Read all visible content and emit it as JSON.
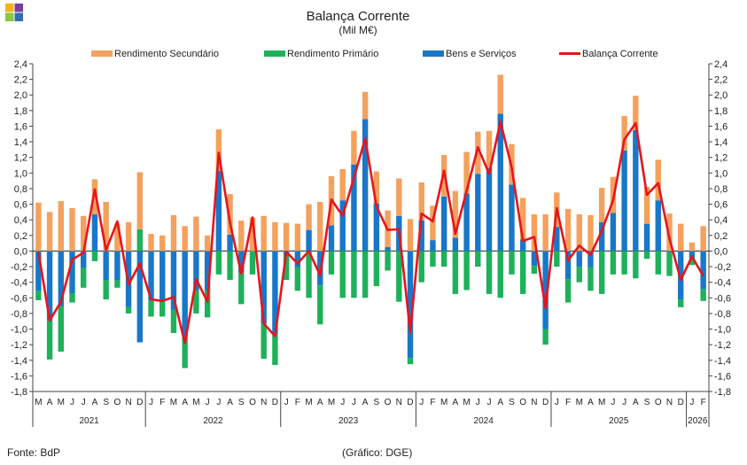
{
  "title": "Balança Corrente",
  "subtitle": "(Mil M€)",
  "footer": {
    "source": "Fonte: BdP",
    "credit": "(Gráfico: DGE)"
  },
  "colors": {
    "rendimento_secundario": "#f4a15d",
    "rendimento_primario": "#1db15a",
    "bens_servicos": "#1877c9",
    "balanca_corrente": "#e8141b",
    "logo": [
      "#f2b21b",
      "#7a3f98",
      "#8cc63f",
      "#2f6db5"
    ]
  },
  "chart_data": {
    "type": "bar",
    "stacked": true,
    "ylim": [
      -1.8,
      2.4
    ],
    "yticks": [
      -1.8,
      -1.6,
      -1.4,
      -1.2,
      -1.0,
      -0.8,
      -0.6,
      -0.4,
      -0.2,
      0.0,
      0.2,
      0.4,
      0.6,
      0.8,
      1.0,
      1.2,
      1.4,
      1.6,
      1.8,
      2.0,
      2.2,
      2.4
    ],
    "ytick_labels": [
      "-1,8",
      "-1,6",
      "-1,4",
      "-1,2",
      "-1,0",
      "-0,8",
      "-0,6",
      "-0,4",
      "-0,2",
      "0,0",
      "0,2",
      "0,4",
      "0,6",
      "0,8",
      "1,0",
      "1,2",
      "1,4",
      "1,6",
      "1,8",
      "2,0",
      "2,2",
      "2,4"
    ],
    "legend_position": "top",
    "years": [
      {
        "label": "2021",
        "count": 10
      },
      {
        "label": "2022",
        "count": 12
      },
      {
        "label": "2023",
        "count": 12
      },
      {
        "label": "2024",
        "count": 12
      },
      {
        "label": "2025",
        "count": 12
      },
      {
        "label": "2026",
        "count": 2
      }
    ],
    "categories": [
      "M",
      "A",
      "M",
      "J",
      "J",
      "A",
      "S",
      "O",
      "N",
      "D",
      "J",
      "F",
      "M",
      "A",
      "M",
      "J",
      "J",
      "A",
      "S",
      "O",
      "N",
      "D",
      "J",
      "F",
      "M",
      "A",
      "M",
      "J",
      "J",
      "A",
      "S",
      "O",
      "N",
      "D",
      "J",
      "F",
      "M",
      "A",
      "M",
      "J",
      "J",
      "A",
      "S",
      "O",
      "N",
      "D",
      "J",
      "F",
      "M",
      "A",
      "M",
      "J",
      "J",
      "A",
      "S",
      "O",
      "N",
      "D",
      "J",
      "F"
    ],
    "series": [
      {
        "name": "Rendimento Secundário",
        "kind": "bar",
        "values": [
          0.62,
          0.5,
          0.64,
          0.55,
          0.45,
          0.45,
          0.63,
          0.35,
          0.37,
          0.73,
          0.22,
          0.2,
          0.46,
          0.32,
          0.44,
          0.2,
          0.53,
          0.52,
          0.39,
          0.43,
          0.45,
          0.37,
          0.36,
          0.35,
          0.33,
          0.63,
          0.63,
          0.4,
          0.43,
          0.35,
          0.41,
          0.47,
          0.48,
          0.41,
          0.49,
          0.44,
          0.53,
          0.6,
          0.53,
          0.54,
          0.48,
          0.5,
          0.52,
          0.53,
          0.47,
          0.47,
          0.44,
          0.54,
          0.47,
          0.46,
          0.44,
          0.46,
          0.44,
          0.44,
          0.47,
          0.52,
          0.48,
          0.35,
          0.11,
          0.32
        ]
      },
      {
        "name": "Rendimento Primário",
        "kind": "bar",
        "values": [
          -0.12,
          -0.5,
          -0.58,
          -0.12,
          -0.25,
          -0.13,
          -0.25,
          -0.1,
          -0.08,
          0.28,
          -0.2,
          -0.2,
          -0.3,
          -0.4,
          -0.3,
          -0.35,
          -0.3,
          -0.37,
          -0.4,
          -0.3,
          -0.45,
          -0.4,
          -0.3,
          -0.3,
          -0.6,
          -0.5,
          -0.3,
          -0.6,
          -0.6,
          -0.6,
          -0.45,
          -0.25,
          -0.65,
          -0.08,
          -0.4,
          -0.2,
          -0.2,
          -0.55,
          -0.5,
          -0.2,
          -0.55,
          -0.6,
          -0.3,
          -0.55,
          -0.1,
          -0.2,
          -0.2,
          -0.3,
          -0.2,
          -0.3,
          -0.55,
          -0.3,
          -0.3,
          -0.35,
          -0.1,
          -0.3,
          -0.3,
          -0.1,
          -0.1,
          -0.15
        ]
      },
      {
        "name": "Bens e Serviços",
        "kind": "bar",
        "values": [
          -0.51,
          -0.89,
          -0.71,
          -0.54,
          -0.22,
          0.47,
          -0.37,
          -0.37,
          -0.72,
          -1.17,
          -0.64,
          -0.64,
          -0.75,
          -1.1,
          -0.5,
          -0.5,
          1.03,
          0.21,
          -0.28,
          0.0,
          -0.93,
          -1.06,
          -0.07,
          -0.21,
          0.27,
          -0.44,
          0.33,
          0.65,
          1.11,
          1.69,
          0.61,
          0.05,
          0.45,
          -1.37,
          0.39,
          0.14,
          0.7,
          0.17,
          0.74,
          0.99,
          1.06,
          1.76,
          0.85,
          0.15,
          -0.19,
          -1.0,
          0.31,
          -0.36,
          -0.2,
          -0.21,
          0.37,
          0.49,
          1.29,
          1.55,
          0.35,
          0.65,
          -0.02,
          -0.62,
          -0.08,
          -0.49
        ]
      },
      {
        "name": "Balança Corrente",
        "kind": "line",
        "values": [
          -0.01,
          -0.89,
          -0.65,
          -0.11,
          -0.02,
          0.79,
          0.01,
          0.38,
          -0.43,
          -0.16,
          -0.62,
          -0.64,
          -0.59,
          -1.18,
          -0.36,
          -0.65,
          1.26,
          0.36,
          -0.29,
          0.43,
          -0.93,
          -1.09,
          -0.01,
          -0.16,
          -0.0,
          -0.31,
          0.66,
          0.45,
          0.94,
          1.44,
          0.57,
          0.27,
          0.28,
          -1.04,
          0.48,
          0.38,
          1.03,
          0.22,
          0.77,
          1.33,
          0.99,
          1.66,
          1.07,
          0.13,
          0.18,
          -0.73,
          0.55,
          -0.12,
          0.07,
          -0.05,
          0.26,
          0.65,
          1.43,
          1.64,
          0.72,
          0.87,
          0.16,
          -0.37,
          -0.07,
          -0.32
        ]
      }
    ]
  }
}
